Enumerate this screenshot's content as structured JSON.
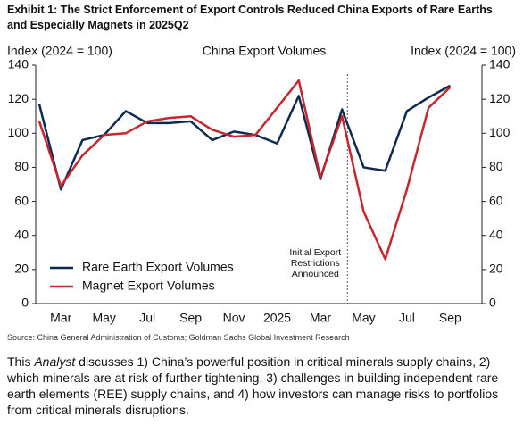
{
  "title_lines": [
    "Exhibit 1: The Strict Enforcement of Export Controls Reduced China Exports of Rare Earths",
    "and Especially Magnets in 2025Q2"
  ],
  "chart_data": {
    "type": "line",
    "title": "China Export Volumes",
    "ylabel": "Index (2024 = 100)",
    "y2label": "Index (2024 = 100)",
    "categories": [
      null,
      "Mar",
      null,
      "May",
      null,
      "Jul",
      null,
      "Sep",
      null,
      "Nov",
      null,
      "2025",
      null,
      "Mar",
      null,
      "May",
      null,
      "Jul",
      null,
      "Sep"
    ],
    "series": [
      {
        "name": "Rare Earth Export Volumes",
        "color": "#0d2b4f",
        "values": [
          117,
          67,
          96,
          99,
          113,
          106,
          106,
          107,
          96,
          101,
          99,
          94,
          122,
          73,
          114,
          80,
          78,
          113,
          121,
          128
        ]
      },
      {
        "name": "Magnet Export Volumes",
        "color": "#c8262e",
        "values": [
          107,
          69,
          87,
          99,
          100,
          107,
          109,
          110,
          102,
          98,
          99,
          115,
          131,
          74,
          110,
          54,
          26,
          67,
          115,
          127
        ]
      }
    ],
    "ylim": [
      0,
      140
    ],
    "yticks": [
      0,
      20,
      40,
      60,
      80,
      100,
      120,
      140
    ],
    "y2lim": [
      0,
      140
    ],
    "y2ticks": [
      0,
      20,
      40,
      60,
      80,
      100,
      120,
      140
    ],
    "annotation": [
      "Initial Export",
      "Restrictions",
      "Announced"
    ],
    "legend": "lower left"
  },
  "source": "Source: China General Administration of Customs; Goldman Sachs Global Investment Research",
  "paragraph": {
    "before": "This ",
    "italic": "Analyst",
    "after": " discusses 1) China’s powerful position in critical minerals supply chains, 2) which minerals are at risk of further tightening, 3) challenges in building independent rare earth elements (REE) supply chains, and 4) how investors can manage risks to portfolios from critical minerals disruptions."
  }
}
